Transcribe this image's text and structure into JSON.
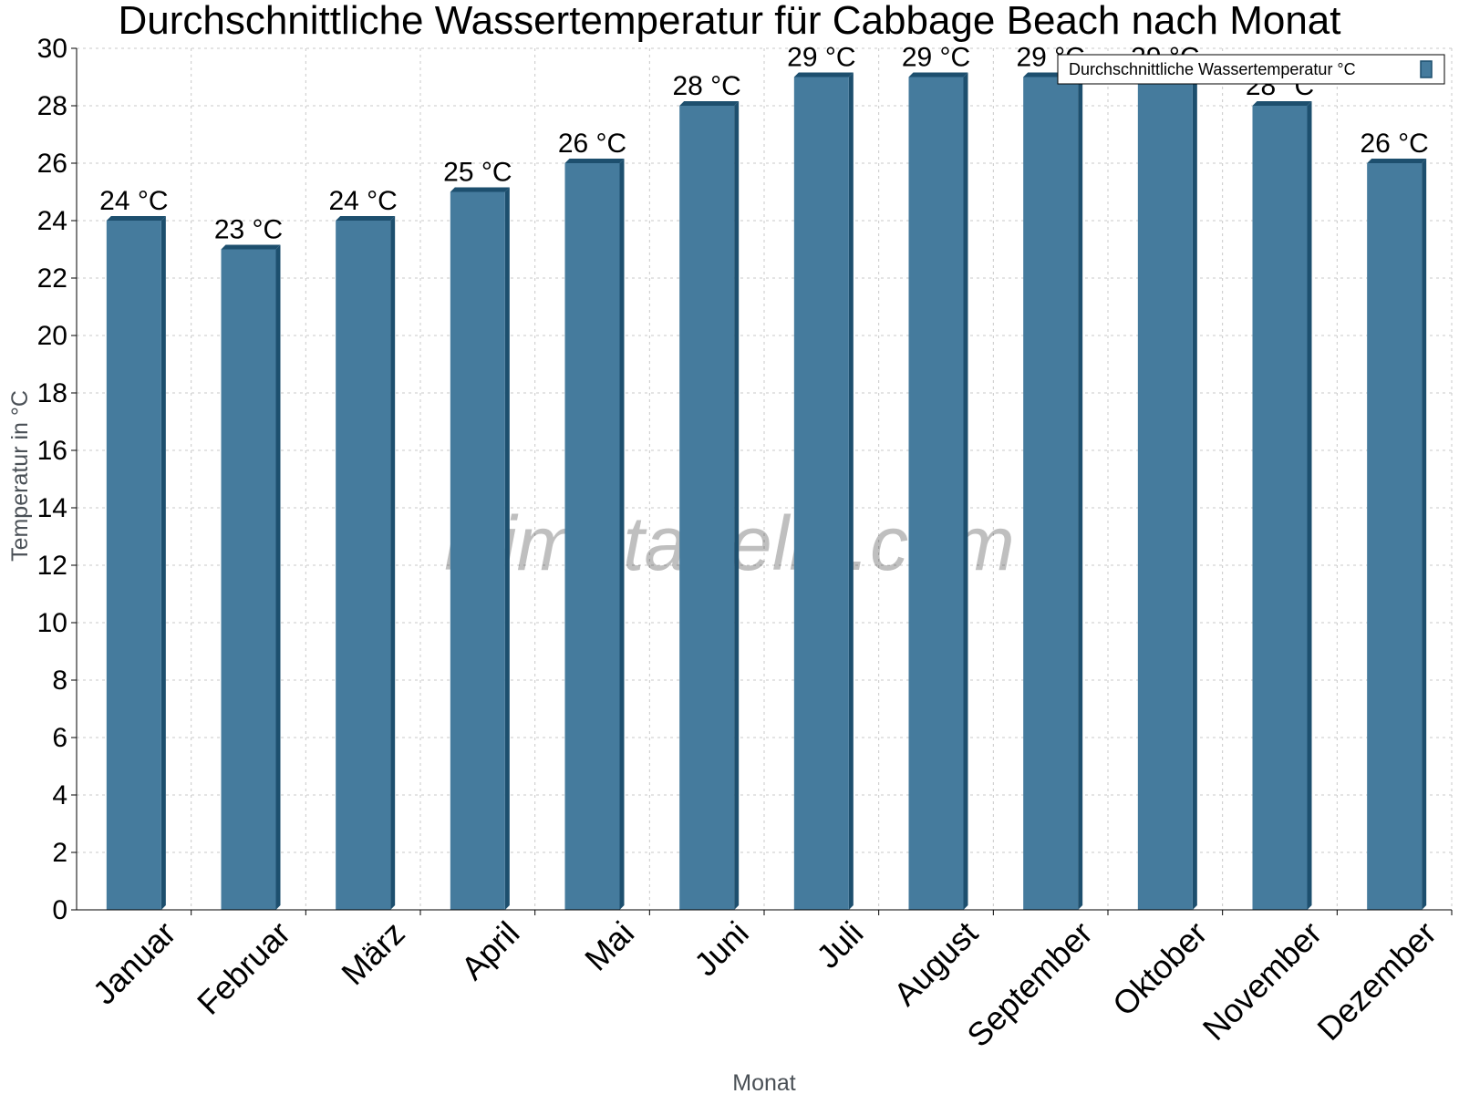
{
  "chart_data": {
    "type": "bar",
    "title": "Durchschnittliche Wassertemperatur für Cabbage Beach nach Monat",
    "xlabel": "Monat",
    "ylabel": "Temperatur in °C",
    "categories": [
      "Januar",
      "Februar",
      "März",
      "April",
      "Mai",
      "Juni",
      "Juli",
      "August",
      "September",
      "Oktober",
      "November",
      "Dezember"
    ],
    "series": [
      {
        "name": "Durchschnittliche Wassertemperatur °C",
        "values": [
          24,
          23,
          24,
          25,
          26,
          28,
          29,
          29,
          29,
          29,
          28,
          26
        ],
        "labels": [
          "24 °C",
          "23 °C",
          "24 °C",
          "25 °C",
          "26 °C",
          "28 °C",
          "29 °C",
          "29 °C",
          "29 °C",
          "29 °C",
          "28 °C",
          "26 °C"
        ]
      }
    ],
    "ylim": [
      0,
      30
    ],
    "yticks": [
      0,
      2,
      4,
      6,
      8,
      10,
      12,
      14,
      16,
      18,
      20,
      22,
      24,
      26,
      28,
      30
    ],
    "grid": true,
    "legend_position": "top-right",
    "colors": {
      "bar_face": "#457b9d",
      "bar_edge": "#1d4f6e",
      "grid": "#c8c8c8"
    }
  },
  "watermark": "klimatabelle.com"
}
